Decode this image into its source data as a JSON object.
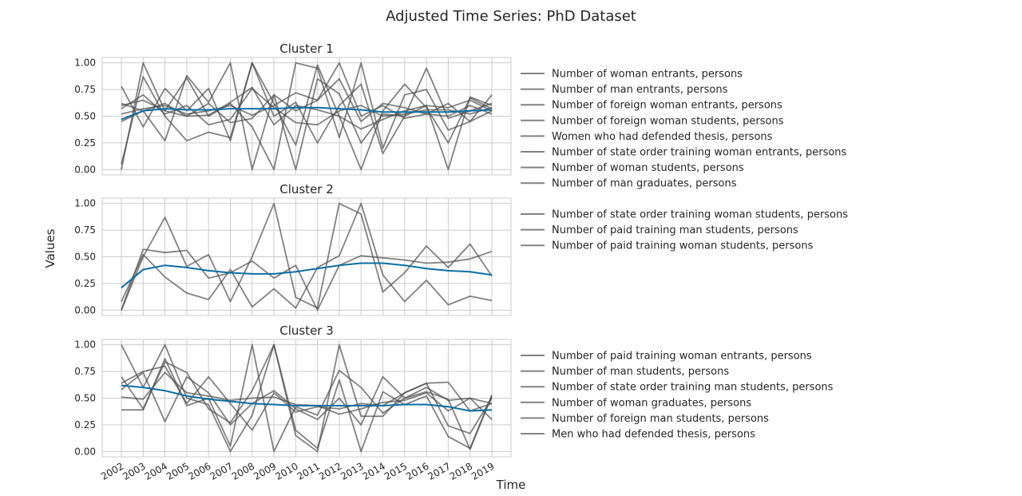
{
  "chart_data": {
    "type": "line",
    "title": "Adjusted Time Series: PhD Dataset",
    "xlabel": "Time",
    "ylabel": "Values",
    "x": [
      2002,
      2003,
      2004,
      2005,
      2006,
      2007,
      2008,
      2009,
      2010,
      2011,
      2012,
      2013,
      2014,
      2015,
      2016,
      2017,
      2018,
      2019
    ],
    "yticks": [
      "0.00",
      "0.25",
      "0.50",
      "0.75",
      "1.00"
    ],
    "ylim": [
      -0.05,
      1.05
    ],
    "grid": true,
    "legend_position": "right",
    "colors": {
      "member": "#4d4d4d",
      "centroid": "#0c6ea4",
      "grid": "#cccccc"
    },
    "panels": [
      {
        "title": "Cluster 1",
        "centroid": [
          0.47,
          0.55,
          0.57,
          0.56,
          0.56,
          0.57,
          0.57,
          0.57,
          0.58,
          0.58,
          0.57,
          0.56,
          0.54,
          0.54,
          0.54,
          0.54,
          0.55,
          0.56
        ],
        "series": [
          {
            "name": "Number of woman entrants, persons",
            "values": [
              0.78,
              0.4,
              0.76,
              0.55,
              0.76,
              0.27,
              1.0,
              0.62,
              0.23,
              0.98,
              0.5,
              0.0,
              0.55,
              0.8,
              0.58,
              0.25,
              0.67,
              0.57
            ]
          },
          {
            "name": "Number of man entrants, persons",
            "values": [
              0.0,
              1.0,
              0.55,
              0.86,
              0.5,
              0.62,
              0.4,
              0.0,
              1.0,
              0.95,
              0.3,
              1.0,
              0.2,
              0.7,
              0.75,
              0.37,
              0.45,
              0.55
            ]
          },
          {
            "name": "Number of foreign woman entrants, persons",
            "values": [
              0.62,
              0.55,
              0.27,
              0.88,
              0.63,
              1.0,
              0.0,
              0.7,
              0.0,
              0.85,
              0.71,
              0.25,
              0.52,
              0.5,
              0.6,
              0.0,
              0.68,
              0.6
            ]
          },
          {
            "name": "Number of foreign woman students, persons",
            "values": [
              0.05,
              0.87,
              0.5,
              0.27,
              0.35,
              0.3,
              1.0,
              0.5,
              0.63,
              0.25,
              0.6,
              0.8,
              0.15,
              0.5,
              0.95,
              0.48,
              0.55,
              0.62
            ]
          },
          {
            "name": "Women who had defended thesis, persons",
            "values": [
              0.57,
              0.7,
              0.52,
              0.6,
              0.42,
              0.47,
              0.76,
              0.58,
              0.44,
              0.42,
              0.55,
              0.6,
              0.5,
              0.52,
              0.56,
              0.56,
              0.52,
              0.58
            ]
          },
          {
            "name": "Number of state order training woman entrants, persons",
            "values": [
              0.52,
              0.57,
              0.6,
              0.52,
              0.55,
              0.6,
              0.51,
              0.6,
              0.72,
              0.65,
              1.0,
              0.5,
              0.6,
              0.48,
              0.52,
              0.62,
              0.45,
              0.7
            ]
          },
          {
            "name": "Number of woman students, persons",
            "values": [
              0.45,
              0.55,
              0.62,
              0.5,
              0.51,
              0.63,
              0.77,
              0.42,
              0.6,
              0.56,
              0.5,
              0.38,
              0.47,
              0.55,
              0.6,
              0.58,
              0.65,
              0.55
            ]
          },
          {
            "name": "Number of man graduates, persons",
            "values": [
              0.6,
              0.65,
              0.55,
              0.5,
              0.62,
              0.44,
              0.48,
              0.7,
              0.55,
              0.65,
              0.85,
              0.45,
              0.62,
              0.58,
              0.52,
              0.5,
              0.6,
              0.52
            ]
          }
        ]
      },
      {
        "title": "Cluster 2",
        "centroid": [
          0.21,
          0.38,
          0.42,
          0.4,
          0.37,
          0.35,
          0.34,
          0.34,
          0.36,
          0.39,
          0.42,
          0.44,
          0.44,
          0.42,
          0.39,
          0.37,
          0.36,
          0.33
        ],
        "series": [
          {
            "name": "Number of state order training woman students, persons",
            "values": [
              0.0,
              0.5,
              0.87,
              0.41,
              0.52,
              0.08,
              0.5,
              1.0,
              0.12,
              0.02,
              1.0,
              0.9,
              0.17,
              0.35,
              0.6,
              0.4,
              0.62,
              0.32
            ]
          },
          {
            "name": "Number of paid training man students, persons",
            "values": [
              0.08,
              0.52,
              0.31,
              0.16,
              0.1,
              0.38,
              0.03,
              0.2,
              0.02,
              0.4,
              0.51,
              1.0,
              0.33,
              0.08,
              0.28,
              0.05,
              0.13,
              0.09
            ]
          },
          {
            "name": "Number of paid training woman students, persons",
            "values": [
              0.0,
              0.57,
              0.54,
              0.56,
              0.3,
              0.35,
              0.46,
              0.3,
              0.42,
              0.0,
              0.42,
              0.51,
              0.49,
              0.47,
              0.44,
              0.45,
              0.48,
              0.55
            ]
          }
        ]
      },
      {
        "title": "Cluster 3",
        "centroid": [
          0.62,
          0.6,
          0.57,
          0.52,
          0.49,
          0.47,
          0.45,
          0.44,
          0.43,
          0.43,
          0.43,
          0.43,
          0.43,
          0.44,
          0.44,
          0.42,
          0.38,
          0.39
        ],
        "series": [
          {
            "name": "Number of paid training woman entrants, persons",
            "values": [
              1.0,
              0.6,
              1.0,
              0.5,
              0.44,
              0.0,
              0.34,
              1.0,
              0.2,
              0.03,
              0.67,
              0.0,
              0.56,
              0.44,
              0.52,
              0.14,
              0.03,
              0.53
            ]
          },
          {
            "name": "Number of man students, persons",
            "values": [
              0.39,
              0.39,
              0.87,
              0.43,
              0.5,
              0.05,
              1.0,
              0.0,
              0.42,
              0.34,
              0.76,
              0.6,
              0.36,
              0.5,
              0.6,
              0.48,
              0.5,
              0.45
            ]
          },
          {
            "name": "Number of state order training man students, persons",
            "values": [
              0.7,
              0.4,
              0.84,
              0.74,
              0.4,
              0.27,
              0.57,
              1.0,
              0.15,
              0.0,
              1.0,
              0.33,
              0.33,
              0.55,
              0.64,
              0.24,
              0.17,
              0.5
            ]
          },
          {
            "name": "Number of woman graduates, persons",
            "values": [
              0.58,
              0.74,
              0.28,
              0.7,
              0.55,
              0.25,
              0.45,
              0.57,
              0.4,
              0.3,
              0.5,
              0.25,
              0.7,
              0.5,
              0.56,
              0.49,
              0.02,
              0.52
            ]
          },
          {
            "name": "Number of foreign man students, persons",
            "values": [
              0.64,
              0.75,
              0.8,
              0.45,
              0.7,
              0.45,
              0.2,
              0.55,
              0.37,
              0.42,
              0.4,
              0.45,
              0.43,
              0.55,
              0.64,
              0.65,
              0.38,
              0.45
            ]
          },
          {
            "name": "Men who had defended thesis, persons",
            "values": [
              0.51,
              0.49,
              0.74,
              0.55,
              0.52,
              0.48,
              0.5,
              0.51,
              0.44,
              0.43,
              0.35,
              0.4,
              0.46,
              0.48,
              0.55,
              0.38,
              0.5,
              0.3
            ]
          }
        ]
      }
    ]
  }
}
